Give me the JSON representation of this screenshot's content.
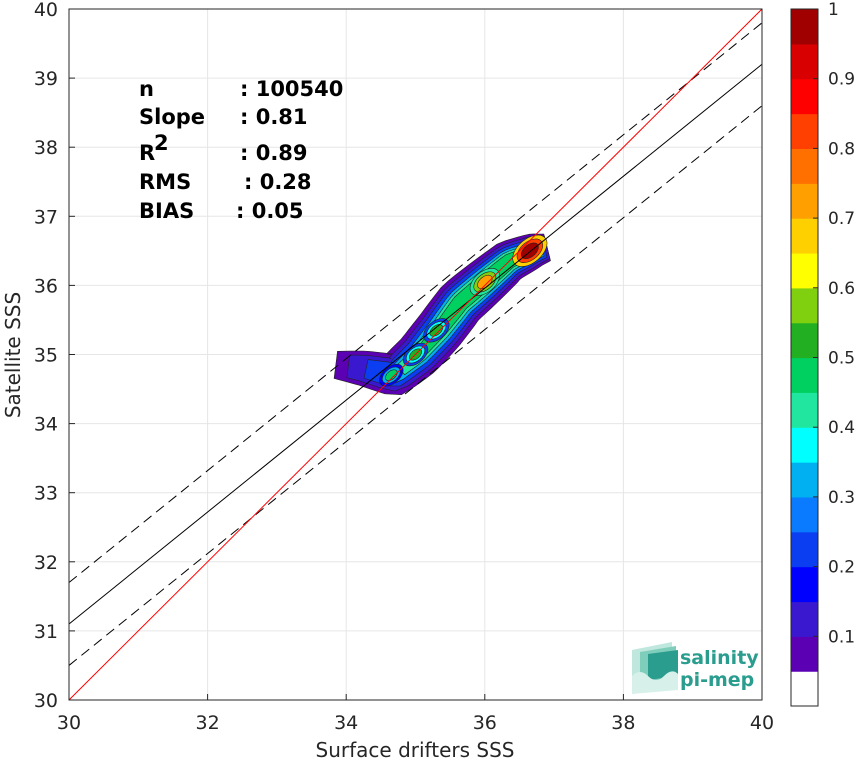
{
  "chart_data": {
    "type": "contour",
    "xlabel": "Surface drifters SSS",
    "ylabel": "Satellite SSS",
    "xlim": [
      30,
      40
    ],
    "ylim": [
      30,
      40
    ],
    "xticks": [
      30,
      32,
      34,
      36,
      38,
      40
    ],
    "yticks": [
      30,
      31,
      32,
      33,
      34,
      35,
      36,
      37,
      38,
      39,
      40
    ],
    "grid": true,
    "stats": [
      {
        "label": "n",
        "sep": ":",
        "value": "100540"
      },
      {
        "label": "Slope",
        "sep": ":",
        "value": "0.81"
      },
      {
        "label": "R",
        "sup": "2",
        "sep": ":",
        "value": "0.89"
      },
      {
        "label": "RMS",
        "sep": ":",
        "value": "0.28"
      },
      {
        "label": "BIAS",
        "sep": ":",
        "value": "0.05"
      }
    ],
    "lines": {
      "identity": {
        "slope": 1,
        "intercept": 0,
        "color": "#ff0000"
      },
      "regression": {
        "slope": 0.81,
        "intercept": 6.8,
        "color": "#000000"
      },
      "regression_upper": {
        "slope": 0.81,
        "intercept": 7.4,
        "style": "dashed"
      },
      "regression_lower": {
        "slope": 0.81,
        "intercept": 6.2,
        "style": "dashed"
      }
    },
    "density_peaks": [
      {
        "x": 36.65,
        "y": 36.5,
        "level": 1.0
      },
      {
        "x": 36.0,
        "y": 36.05,
        "level": 0.75
      },
      {
        "x": 35.3,
        "y": 35.35,
        "level": 0.55
      },
      {
        "x": 35.0,
        "y": 35.0,
        "level": 0.5
      },
      {
        "x": 34.65,
        "y": 34.7,
        "level": 0.45
      }
    ],
    "colorbar": {
      "range": [
        0,
        1
      ],
      "ticks": [
        "0.1",
        "0.2",
        "0.3",
        "0.4",
        "0.5",
        "0.6",
        "0.7",
        "0.8",
        "0.9",
        "1"
      ],
      "colors": [
        "#ffffff",
        "#5c00b4",
        "#3a18d0",
        "#0000ff",
        "#0a3ef0",
        "#0a7aff",
        "#00b0f0",
        "#00ffff",
        "#20e6a0",
        "#00d060",
        "#22b022",
        "#80d010",
        "#ffff00",
        "#ffd000",
        "#ffa000",
        "#ff7000",
        "#ff4000",
        "#ff0000",
        "#d80000",
        "#a00000"
      ]
    }
  },
  "logo": {
    "line1": "salinity",
    "line2": "pi-mep"
  }
}
